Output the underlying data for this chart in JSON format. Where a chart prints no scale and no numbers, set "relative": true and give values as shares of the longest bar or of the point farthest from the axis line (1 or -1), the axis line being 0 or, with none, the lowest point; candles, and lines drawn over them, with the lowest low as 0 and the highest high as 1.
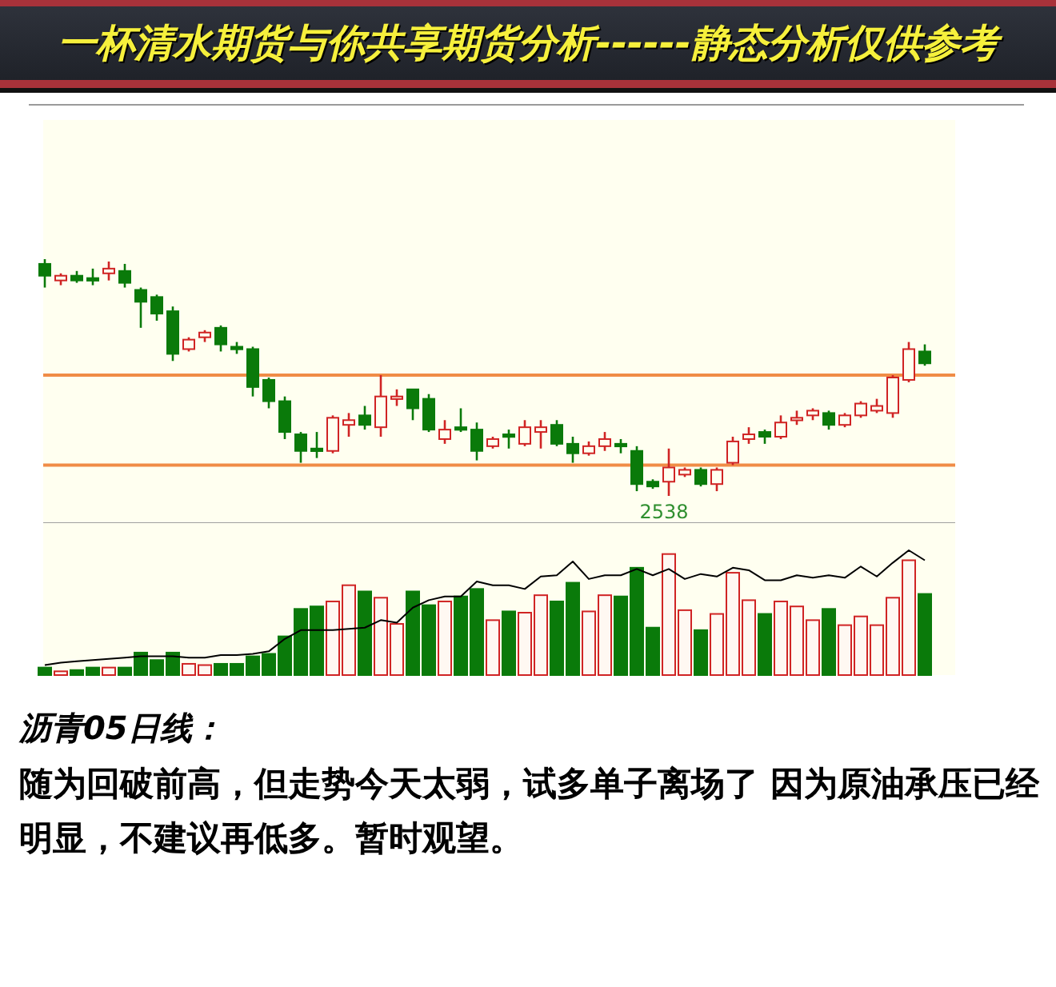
{
  "chart_data": [
    {
      "type": "candlestick",
      "title": "一杯清水期货与你共享期货分析------静态分析仅供参考",
      "relative": true,
      "categories": [
        null,
        null,
        null,
        null,
        null,
        null,
        null,
        null,
        null,
        null,
        null,
        null,
        null,
        null,
        null,
        null,
        null,
        null,
        null,
        null,
        null,
        null,
        null,
        null,
        null,
        null,
        null,
        null,
        null,
        null,
        null,
        null,
        null,
        null,
        null,
        null,
        null,
        null,
        null,
        null,
        null,
        null,
        null,
        null,
        null,
        null,
        null,
        null,
        null,
        null,
        null,
        null,
        null,
        null,
        null,
        null
      ],
      "ohlc": [
        [
          0.98,
          1,
          0.88,
          0.93
        ],
        [
          0.91,
          0.94,
          0.89,
          0.93
        ],
        [
          0.93,
          0.95,
          0.9,
          0.91
        ],
        [
          0.92,
          0.96,
          0.89,
          0.91
        ],
        [
          0.94,
          0.99,
          0.91,
          0.96
        ],
        [
          0.95,
          0.98,
          0.88,
          0.9
        ],
        [
          0.87,
          0.88,
          0.71,
          0.82
        ],
        [
          0.84,
          0.85,
          0.74,
          0.77
        ],
        [
          0.78,
          0.8,
          0.57,
          0.6
        ],
        [
          0.62,
          0.67,
          0.61,
          0.66
        ],
        [
          0.67,
          0.7,
          0.65,
          0.69
        ],
        [
          0.71,
          0.72,
          0.61,
          0.64
        ],
        [
          0.63,
          0.65,
          0.6,
          0.62
        ],
        [
          0.62,
          0.63,
          0.42,
          0.46
        ],
        [
          0.49,
          0.5,
          0.37,
          0.4
        ],
        [
          0.4,
          0.42,
          0.24,
          0.27
        ],
        [
          0.26,
          0.27,
          0.14,
          0.19
        ],
        [
          0.2,
          0.27,
          0.16,
          0.19
        ],
        [
          0.19,
          0.34,
          0.18,
          0.33
        ],
        [
          0.3,
          0.35,
          0.25,
          0.32
        ],
        [
          0.34,
          0.38,
          0.28,
          0.3
        ],
        [
          0.29,
          0.51,
          0.25,
          0.42
        ],
        [
          0.41,
          0.45,
          0.38,
          0.42
        ],
        [
          0.45,
          0.45,
          0.32,
          0.37
        ],
        [
          0.41,
          0.43,
          0.27,
          0.28
        ],
        [
          0.24,
          0.32,
          0.22,
          0.28
        ],
        [
          0.29,
          0.37,
          0.27,
          0.28
        ],
        [
          0.28,
          0.31,
          0.15,
          0.19
        ],
        [
          0.21,
          0.25,
          0.2,
          0.24
        ],
        [
          0.26,
          0.28,
          0.2,
          0.25
        ],
        [
          0.22,
          0.32,
          0.21,
          0.29
        ],
        [
          0.27,
          0.32,
          0.2,
          0.29
        ],
        [
          0.3,
          0.32,
          0.21,
          0.22
        ],
        [
          0.22,
          0.25,
          0.14,
          0.18
        ],
        [
          0.18,
          0.23,
          0.17,
          0.21
        ],
        [
          0.21,
          0.27,
          0.19,
          0.24
        ],
        [
          0.22,
          0.24,
          0.18,
          0.21
        ],
        [
          0.19,
          0.21,
          0.02,
          0.05
        ],
        [
          0.06,
          0.07,
          0.03,
          0.04
        ],
        [
          0.06,
          0.2,
          0,
          0.12
        ],
        [
          0.09,
          0.12,
          0.08,
          0.11
        ],
        [
          0.11,
          0.12,
          0.04,
          0.05
        ],
        [
          0.05,
          0.12,
          0.02,
          0.11
        ],
        [
          0.14,
          0.25,
          0.13,
          0.23
        ],
        [
          0.24,
          0.29,
          0.22,
          0.26
        ],
        [
          0.27,
          0.28,
          0.22,
          0.25
        ],
        [
          0.25,
          0.34,
          0.24,
          0.31
        ],
        [
          0.32,
          0.36,
          0.3,
          0.33
        ],
        [
          0.34,
          0.37,
          0.32,
          0.36
        ],
        [
          0.35,
          0.36,
          0.28,
          0.3
        ],
        [
          0.3,
          0.35,
          0.29,
          0.34
        ],
        [
          0.34,
          0.4,
          0.33,
          0.39
        ],
        [
          0.36,
          0.41,
          0.35,
          0.38
        ],
        [
          0.35,
          0.51,
          0.33,
          0.5
        ],
        [
          0.49,
          0.65,
          0.48,
          0.62
        ],
        [
          0.61,
          0.64,
          0.55,
          0.56
        ]
      ],
      "colors": [
        "#0a7a0a",
        "#d02424",
        "#0a7a0a",
        "#0a7a0a",
        "#d02424",
        "#0a7a0a",
        "#0a7a0a",
        "#0a7a0a",
        "#0a7a0a",
        "#d02424",
        "#d02424",
        "#0a7a0a",
        "#0a7a0a",
        "#0a7a0a",
        "#0a7a0a",
        "#0a7a0a",
        "#0a7a0a",
        "#0a7a0a",
        "#d02424",
        "#d02424",
        "#0a7a0a",
        "#d02424",
        "#d02424",
        "#0a7a0a",
        "#0a7a0a",
        "#d02424",
        "#0a7a0a",
        "#0a7a0a",
        "#d02424",
        "#0a7a0a",
        "#d02424",
        "#d02424",
        "#0a7a0a",
        "#0a7a0a",
        "#d02424",
        "#d02424",
        "#0a7a0a",
        "#0a7a0a",
        "#0a7a0a",
        "#d02424",
        "#d02424",
        "#0a7a0a",
        "#d02424",
        "#d02424",
        "#d02424",
        "#0a7a0a",
        "#d02424",
        "#d02424",
        "#d02424",
        "#0a7a0a",
        "#d02424",
        "#d02424",
        "#d02424",
        "#d02424",
        "#d02424",
        "#0a7a0a"
      ],
      "ref_lines": [
        {
          "axis": "y",
          "value": 0.51,
          "color": "#f08c46"
        },
        {
          "axis": "y",
          "value": 0.13,
          "color": "#f08c46"
        }
      ],
      "annotations": [
        {
          "text": "2538",
          "y": 0
        }
      ]
    },
    {
      "type": "bar",
      "relative": true,
      "categories": [
        null,
        null,
        null,
        null,
        null,
        null,
        null,
        null,
        null,
        null,
        null,
        null,
        null,
        null,
        null,
        null,
        null,
        null,
        null,
        null,
        null,
        null,
        null,
        null,
        null,
        null,
        null,
        null,
        null,
        null,
        null,
        null,
        null,
        null,
        null,
        null,
        null,
        null,
        null,
        null,
        null,
        null,
        null,
        null,
        null,
        null,
        null,
        null,
        null,
        null,
        null,
        null,
        null,
        null,
        null,
        null
      ],
      "series": [
        {
          "type": "bar",
          "colors": [
            "#0a7a0a",
            "#d02424",
            "#0a7a0a",
            "#0a7a0a",
            "#d02424",
            "#0a7a0a",
            "#0a7a0a",
            "#0a7a0a",
            "#0a7a0a",
            "#d02424",
            "#d02424",
            "#0a7a0a",
            "#0a7a0a",
            "#0a7a0a",
            "#0a7a0a",
            "#0a7a0a",
            "#0a7a0a",
            "#0a7a0a",
            "#d02424",
            "#d02424",
            "#0a7a0a",
            "#d02424",
            "#d02424",
            "#0a7a0a",
            "#0a7a0a",
            "#d02424",
            "#0a7a0a",
            "#0a7a0a",
            "#d02424",
            "#0a7a0a",
            "#d02424",
            "#d02424",
            "#0a7a0a",
            "#0a7a0a",
            "#d02424",
            "#d02424",
            "#0a7a0a",
            "#0a7a0a",
            "#0a7a0a",
            "#d02424",
            "#d02424",
            "#0a7a0a",
            "#d02424",
            "#d02424",
            "#d02424",
            "#0a7a0a",
            "#d02424",
            "#d02424",
            "#d02424",
            "#0a7a0a",
            "#d02424",
            "#d02424",
            "#d02424",
            "#d02424",
            "#d02424",
            "#0a7a0a"
          ],
          "values": [
            0.06,
            0.03,
            0.04,
            0.06,
            0.06,
            0.06,
            0.18,
            0.12,
            0.18,
            0.09,
            0.08,
            0.09,
            0.09,
            0.15,
            0.17,
            0.31,
            0.53,
            0.55,
            0.59,
            0.72,
            0.67,
            0.62,
            0.41,
            0.67,
            0.56,
            0.59,
            0.63,
            0.69,
            0.44,
            0.51,
            0.5,
            0.64,
            0.59,
            0.74,
            0.51,
            0.64,
            0.63,
            0.86,
            0.38,
            0.97,
            0.52,
            0.36,
            0.49,
            0.82,
            0.6,
            0.49,
            0.59,
            0.55,
            0.44,
            0.53,
            0.4,
            0.47,
            0.4,
            0.62,
            0.92,
            0.65
          ]
        },
        {
          "type": "line",
          "color": "#000000",
          "values": [
            0.08,
            0.1,
            0.11,
            0.12,
            0.13,
            0.14,
            0.15,
            0.15,
            0.15,
            0.14,
            0.14,
            0.16,
            0.16,
            0.17,
            0.19,
            0.29,
            0.36,
            0.36,
            0.36,
            0.37,
            0.38,
            0.44,
            0.42,
            0.54,
            0.6,
            0.63,
            0.63,
            0.75,
            0.72,
            0.72,
            0.69,
            0.79,
            0.8,
            0.91,
            0.77,
            0.8,
            0.8,
            0.85,
            0.8,
            0.85,
            0.77,
            0.81,
            0.79,
            0.86,
            0.84,
            0.76,
            0.76,
            0.8,
            0.78,
            0.8,
            0.78,
            0.87,
            0.79,
            0.9,
            1,
            0.92
          ]
        }
      ],
      "annotations": [
        "沥青05日线：",
        "随为回破前高，但走势今天太弱，试多单子离场了 因为原油承压已经明显，不建议再低多。暂时观望。"
      ]
    }
  ]
}
